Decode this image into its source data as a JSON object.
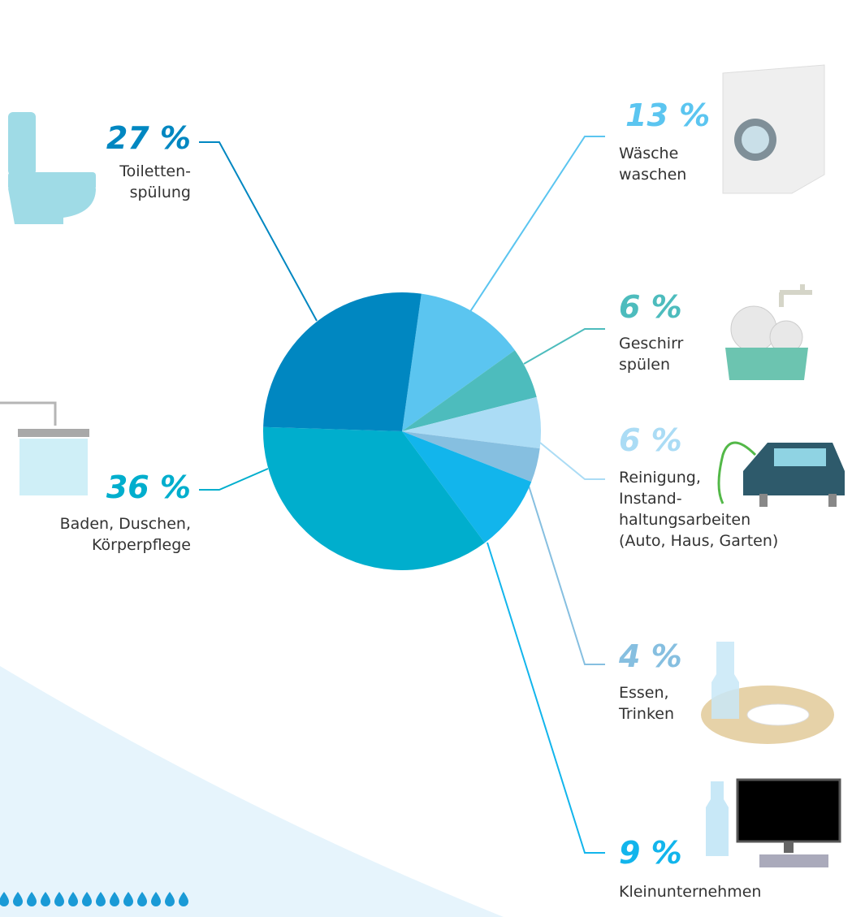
{
  "chart_data": {
    "type": "pie",
    "categories": [
      "Wäsche\nwaschen",
      "Geschirr\nspülen",
      "Reinigung,\nInstand-\nhaltungsarbeiten\n(Auto, Haus, Garten)",
      "Essen,\nTrinken",
      "Kleinunternehmen",
      "Baden, Duschen,\nKörperpflege",
      "Toiletten-\nspülung"
    ],
    "values": [
      13,
      6,
      6,
      4,
      9,
      36,
      27
    ],
    "value_labels": [
      "13 %",
      "6 %",
      "6 %",
      "4 %",
      "9 %",
      "36 %",
      "27 %"
    ],
    "colors": [
      "#5bc5f0",
      "#4dbcbd",
      "#abdcf5",
      "#86bfe0",
      "#12b5ec",
      "#00aecd",
      "#0087c1"
    ]
  }
}
